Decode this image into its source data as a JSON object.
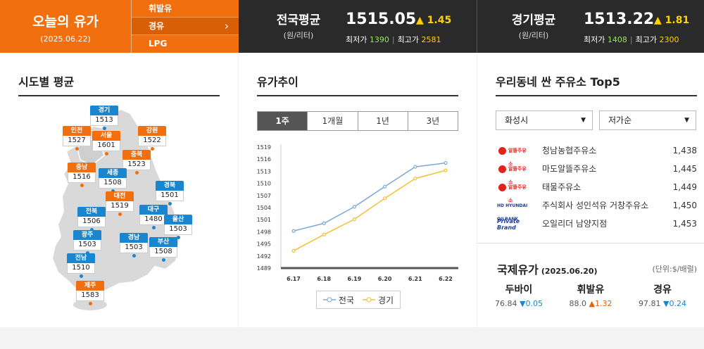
{
  "header": {
    "today_title": "오늘의 유가",
    "today_date": "(2025.06.22)",
    "fuel_tabs": [
      "휘발유",
      "경유",
      "LPG"
    ],
    "active_fuel": "경유",
    "national": {
      "name": "전국평균",
      "unit": "(원/리터)",
      "price": "1515.05",
      "change": "1.45",
      "min_label": "최저가",
      "min": "1390",
      "max_label": "최고가",
      "max": "2581"
    },
    "gyeonggi": {
      "name": "경기평균",
      "unit": "(원/리터)",
      "price": "1513.22",
      "change": "1.81",
      "min_label": "최저가",
      "min": "1408",
      "max_label": "최고가",
      "max": "2300"
    }
  },
  "regional": {
    "title": "시도별 평균",
    "regions": [
      {
        "name": "경기",
        "value": "1513",
        "color": "blue"
      },
      {
        "name": "인천",
        "value": "1527",
        "color": "orange"
      },
      {
        "name": "서울",
        "value": "1601",
        "color": "orange"
      },
      {
        "name": "강원",
        "value": "1522",
        "color": "orange"
      },
      {
        "name": "충북",
        "value": "1523",
        "color": "orange"
      },
      {
        "name": "충남",
        "value": "1516",
        "color": "orange"
      },
      {
        "name": "세종",
        "value": "1508",
        "color": "blue"
      },
      {
        "name": "경북",
        "value": "1501",
        "color": "blue"
      },
      {
        "name": "대전",
        "value": "1519",
        "color": "orange"
      },
      {
        "name": "전북",
        "value": "1506",
        "color": "blue"
      },
      {
        "name": "대구",
        "value": "1480",
        "color": "blue"
      },
      {
        "name": "울산",
        "value": "1503",
        "color": "blue"
      },
      {
        "name": "광주",
        "value": "1503",
        "color": "blue"
      },
      {
        "name": "경남",
        "value": "1503",
        "color": "blue"
      },
      {
        "name": "부산",
        "value": "1508",
        "color": "blue"
      },
      {
        "name": "전남",
        "value": "1510",
        "color": "blue"
      },
      {
        "name": "제주",
        "value": "1583",
        "color": "orange"
      }
    ]
  },
  "trend": {
    "title": "유가추이",
    "periods": [
      "1주",
      "1개월",
      "1년",
      "3년"
    ],
    "active_period": "1주",
    "legend": [
      "전국",
      "경기"
    ]
  },
  "chart_data": {
    "type": "line",
    "title": "",
    "xlabel": "",
    "ylabel": "",
    "x": [
      "6.17",
      "6.18",
      "6.19",
      "6.20",
      "6.21",
      "6.22"
    ],
    "y_ticks": [
      1489,
      1492,
      1495,
      1498,
      1501,
      1504,
      1507,
      1510,
      1513,
      1516,
      1519
    ],
    "ylim": [
      1489,
      1519
    ],
    "series": [
      {
        "name": "전국",
        "color": "#7fa7d6",
        "values": [
          1498.2,
          1500.1,
          1504.2,
          1509.2,
          1514.1,
          1515.05
        ]
      },
      {
        "name": "경기",
        "color": "#f1c232",
        "values": [
          1493.3,
          1497.3,
          1501.1,
          1506.3,
          1511.2,
          1513.22
        ]
      }
    ],
    "grid": false,
    "legend_position": "bottom"
  },
  "top5": {
    "title": "우리동네 싼 주유소 Top5",
    "city": "화성시",
    "sort": "저가순",
    "stations": [
      {
        "brand": "알뜰주유소",
        "name": "청남농협주유소",
        "price": "1,438"
      },
      {
        "brand": "알뜰주유소",
        "name": "마도알뜰주유소",
        "price": "1,445"
      },
      {
        "brand": "알뜰주유소",
        "name": "태물주유소",
        "price": "1,449"
      },
      {
        "brand": "HD HYUNDAI OILBANK",
        "name": "주식회사 성인석유 거창주유소",
        "price": "1,450"
      },
      {
        "brand": "Private Brand",
        "name": "오일리더 남양지점",
        "price": "1,453"
      }
    ]
  },
  "intl": {
    "title": "국제유가",
    "date": "(2025.06.20)",
    "unit": "(단위:$/배럴)",
    "items": [
      {
        "name": "두바이",
        "value": "76.84",
        "dir": "down",
        "change": "0.05"
      },
      {
        "name": "휘발유",
        "value": "88.0",
        "dir": "up",
        "change": "1.32"
      },
      {
        "name": "경유",
        "value": "97.81",
        "dir": "down",
        "change": "0.24"
      }
    ]
  },
  "colors": {
    "accent": "#f26f0f",
    "header_bg": "#2a2a2a",
    "blue": "#1a86d0",
    "up": "#ffd200"
  }
}
